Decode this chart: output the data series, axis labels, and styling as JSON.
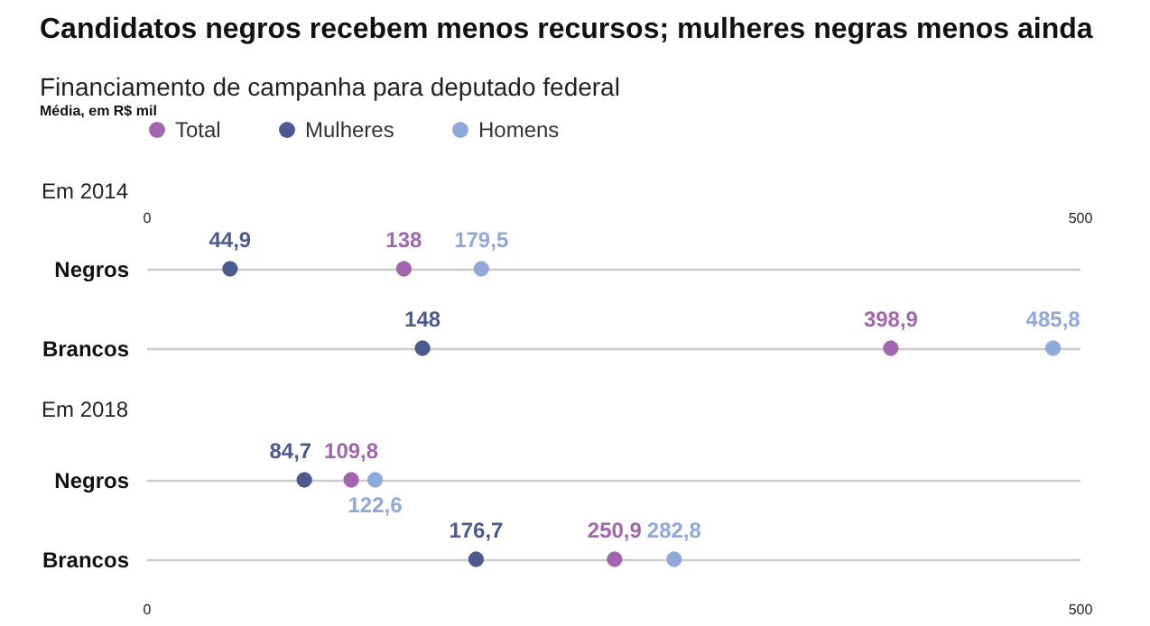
{
  "chart_data": [
    {
      "type": "scatter",
      "orientation": "horizontal",
      "title": "Candidatos negros recebem menos recursos; mulheres negras menos ainda",
      "subtitle": "Financiamento de campanha para deputado federal",
      "annotations": [
        "Média, em R$ mil",
        "Em 2014"
      ],
      "legend": "top left",
      "marker": "circle",
      "grid": "y",
      "x2lim": [
        0,
        500
      ],
      "x2ticks": [
        0,
        500
      ],
      "categories": [
        "Negros",
        "Brancos"
      ],
      "series": [
        {
          "name": "Total",
          "color": "#a465b0",
          "values": [
            138,
            398.9
          ],
          "value_labels": [
            "138",
            "398,9"
          ]
        },
        {
          "name": "Mulheres",
          "color": "#4d5a8f",
          "values": [
            44.9,
            148
          ],
          "value_labels": [
            "44,9",
            "148"
          ]
        },
        {
          "name": "Homens",
          "color": "#8fa9da",
          "values": [
            179.5,
            485.8
          ],
          "value_labels": [
            "179,5",
            "485,8"
          ]
        }
      ]
    },
    {
      "type": "scatter",
      "orientation": "horizontal",
      "title": "Em 2018",
      "marker": "circle",
      "grid": "y",
      "xlim": [
        0,
        500
      ],
      "xticks": [
        0,
        500
      ],
      "categories": [
        "Negros",
        "Brancos"
      ],
      "series": [
        {
          "name": "Total",
          "color": "#a465b0",
          "values": [
            109.8,
            250.9
          ],
          "value_labels": [
            "109,8",
            "250,9"
          ]
        },
        {
          "name": "Mulheres",
          "color": "#4d5a8f",
          "values": [
            84.7,
            176.7
          ],
          "value_labels": [
            "84,7",
            "176,7"
          ]
        },
        {
          "name": "Homens",
          "color": "#8fa9da",
          "values": [
            122.6,
            282.8
          ],
          "value_labels": [
            "122,6",
            "282,8"
          ]
        }
      ]
    }
  ]
}
